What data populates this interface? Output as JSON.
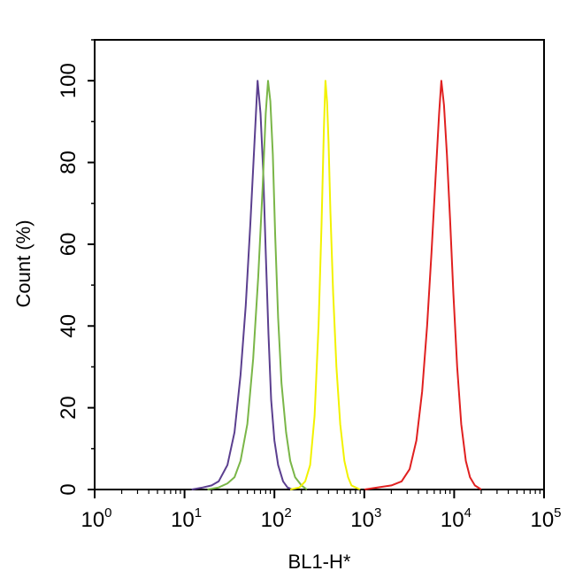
{
  "chart_data": {
    "type": "line",
    "title": "",
    "xlabel": "BL1-H*",
    "ylabel": "Count (%)",
    "x_scale": "log",
    "xlim": [
      1,
      100000
    ],
    "ylim": [
      0,
      110
    ],
    "grid": false,
    "legend": "none",
    "x_ticks": [
      {
        "base": "10",
        "exp": "0"
      },
      {
        "base": "10",
        "exp": "1"
      },
      {
        "base": "10",
        "exp": "2"
      },
      {
        "base": "10",
        "exp": "3"
      },
      {
        "base": "10",
        "exp": "4"
      },
      {
        "base": "10",
        "exp": "5"
      }
    ],
    "y_ticks": [
      "0",
      "20",
      "40",
      "60",
      "80",
      "100"
    ],
    "series": [
      {
        "color": "#5b3f8f",
        "x": [
          12,
          16,
          20,
          24,
          30,
          36,
          42,
          48,
          54,
          60,
          65,
          70,
          75,
          80,
          86,
          92,
          100,
          110,
          125,
          140,
          160
        ],
        "y": [
          0,
          0.5,
          1,
          2,
          6,
          14,
          28,
          45,
          65,
          85,
          100,
          92,
          78,
          58,
          38,
          22,
          12,
          6,
          2,
          0.5,
          0
        ]
      },
      {
        "color": "#7ab648",
        "x": [
          18,
          24,
          30,
          36,
          42,
          50,
          58,
          66,
          74,
          80,
          85,
          90,
          96,
          102,
          110,
          120,
          135,
          150,
          170,
          200,
          230
        ],
        "y": [
          0,
          0.5,
          1.5,
          3,
          7,
          16,
          32,
          52,
          74,
          92,
          100,
          95,
          82,
          62,
          42,
          26,
          14,
          7,
          3,
          1,
          0
        ]
      },
      {
        "color": "#f2f200",
        "x": [
          150,
          190,
          220,
          250,
          280,
          310,
          335,
          355,
          370,
          385,
          400,
          420,
          450,
          490,
          540,
          600,
          660,
          720,
          800,
          900
        ],
        "y": [
          0,
          0.5,
          2,
          6,
          18,
          40,
          65,
          88,
          100,
          95,
          85,
          68,
          48,
          30,
          16,
          7,
          3,
          1,
          0.5,
          0
        ]
      },
      {
        "color": "#e02020",
        "x": [
          1000,
          1400,
          2000,
          2600,
          3200,
          3800,
          4400,
          5000,
          5600,
          6200,
          6800,
          7200,
          7700,
          8300,
          9000,
          9800,
          10800,
          12000,
          13500,
          15000,
          17000,
          20000
        ],
        "y": [
          0,
          0.5,
          1,
          2,
          5,
          12,
          24,
          40,
          58,
          76,
          92,
          100,
          94,
          82,
          66,
          48,
          30,
          16,
          7,
          3,
          1,
          0
        ]
      }
    ]
  }
}
